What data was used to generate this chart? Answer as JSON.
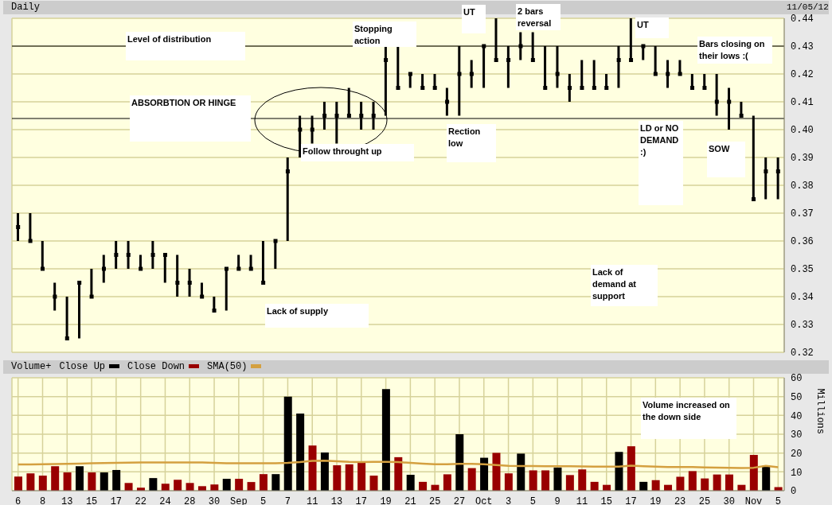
{
  "chart_data": [
    {
      "type": "bar",
      "title": "Daily",
      "series": [
        {
          "type": "bar",
          "color": "#000000",
          "base": [
            0.36,
            0.36,
            0.35,
            0.335,
            0.325,
            0.325,
            0.34,
            0.345,
            0.35,
            0.35,
            0.35,
            0.35,
            0.345,
            0.34,
            0.34,
            0.34,
            0.335,
            0.335,
            0.35,
            0.35,
            0.345,
            0.35,
            0.36,
            0.39,
            0.395,
            0.4,
            0.395,
            0.405,
            0.4,
            0.4,
            0.405,
            0.415,
            0.415,
            0.415,
            0.415,
            0.405,
            0.405,
            0.415,
            0.415,
            0.425,
            0.415,
            0.425,
            0.425,
            0.415,
            0.415,
            0.41,
            0.415,
            0.415,
            0.415,
            0.415,
            0.425,
            0.425,
            0.42,
            0.415,
            0.42,
            0.415,
            0.415,
            0.405,
            0.4,
            0.405,
            0.375,
            0.375,
            0.375
          ],
          "values": [
            0.01,
            0.01,
            0.01,
            0.01,
            0.015,
            0.02,
            0.01,
            0.01,
            0.01,
            0.01,
            0.005,
            0.01,
            0.01,
            0.015,
            0.01,
            0.005,
            0.005,
            0.015,
            0.005,
            0.005,
            0.015,
            0.01,
            0.03,
            0.015,
            0.01,
            0.01,
            0.015,
            0.01,
            0.01,
            0.01,
            0.025,
            0.015,
            0.005,
            0.005,
            0.005,
            0.01,
            0.025,
            0.01,
            0.015,
            0.015,
            0.015,
            0.01,
            0.01,
            0.015,
            0.015,
            0.01,
            0.01,
            0.01,
            0.005,
            0.015,
            0.015,
            0.005,
            0.01,
            0.01,
            0.005,
            0.005,
            0.005,
            0.015,
            0.015,
            0.005,
            0.03,
            0.015,
            0.015
          ]
        },
        {
          "type": "scatter",
          "color": "#000000",
          "values": [
            0.365,
            0.36,
            0.35,
            0.34,
            0.325,
            0.345,
            0.34,
            0.35,
            0.355,
            0.355,
            0.35,
            0.355,
            0.355,
            0.345,
            0.345,
            0.34,
            0.335,
            0.35,
            0.35,
            0.35,
            0.345,
            0.36,
            0.385,
            0.4,
            0.4,
            0.405,
            0.405,
            0.405,
            0.405,
            0.405,
            0.425,
            0.415,
            0.42,
            0.415,
            0.415,
            0.41,
            0.42,
            0.42,
            0.43,
            0.425,
            0.425,
            0.43,
            0.425,
            0.415,
            0.42,
            0.415,
            0.415,
            0.415,
            0.415,
            0.425,
            0.425,
            0.43,
            0.42,
            0.42,
            0.42,
            0.415,
            0.415,
            0.41,
            0.41,
            0.405,
            0.375,
            0.385,
            0.385
          ]
        }
      ],
      "ylim": [
        0.32,
        0.44
      ],
      "yticks": [
        0.32,
        0.33,
        0.34,
        0.35,
        0.36,
        0.37,
        0.38,
        0.39,
        {
          "value": 0.4,
          "label": "0.40"
        },
        0.41,
        0.42,
        0.43,
        0.44
      ],
      "grid": true,
      "tick_labels": "y",
      "marker": "square",
      "ref_lines": [
        {
          "axis": "y",
          "value": 0.43
        },
        {
          "axis": "y",
          "value": 0.404
        }
      ],
      "annotations": [
        "11/05/12",
        "Level of distribution",
        "ABSORBTION OR HINGE",
        {
          "text": "Stopping action",
          "y": 0.43
        },
        "UT",
        "2 bars reversal",
        "UT",
        "Bars closing on their lows :(",
        "Follow throught up",
        {
          "text": "Rection low",
          "y": 0.405
        },
        "LD or NO DEMAND :)",
        "SOW",
        "Lack of demand at support",
        "Lack of supply"
      ]
    },
    {
      "type": "bar",
      "title": "Volume+",
      "categories": [
        "6",
        null,
        "8",
        null,
        "13",
        null,
        "15",
        null,
        "17",
        null,
        "22",
        null,
        "24",
        null,
        "28",
        null,
        "30",
        null,
        "Sep",
        null,
        "5",
        null,
        "7",
        null,
        "11",
        null,
        "13",
        null,
        "17",
        null,
        "19",
        null,
        "21",
        null,
        "25",
        null,
        "27",
        null,
        "Oct",
        null,
        "3",
        null,
        "5",
        null,
        "9",
        null,
        "11",
        null,
        "15",
        null,
        "17",
        null,
        "19",
        null,
        "23",
        null,
        "25",
        null,
        "30",
        null,
        "Nov",
        null,
        "5"
      ],
      "stacked": true,
      "series": [
        {
          "name": "Close Up",
          "color": "#000000",
          "values": [
            null,
            null,
            null,
            null,
            null,
            13,
            null,
            9.7,
            11,
            null,
            null,
            6.7,
            null,
            null,
            null,
            null,
            null,
            6.3,
            null,
            null,
            null,
            8.8,
            50,
            41,
            null,
            20.3,
            null,
            null,
            null,
            null,
            54,
            null,
            8.4,
            null,
            null,
            null,
            30,
            null,
            17.5,
            null,
            null,
            19.7,
            null,
            null,
            12.3,
            null,
            null,
            null,
            null,
            20.6,
            null,
            4.7,
            null,
            null,
            null,
            null,
            null,
            null,
            null,
            null,
            null,
            13.2,
            null
          ]
        },
        {
          "name": "Close Down",
          "color": "#990000",
          "values": [
            7.5,
            9.2,
            8,
            13,
            9.7,
            null,
            9.7,
            null,
            null,
            4.1,
            1.6,
            null,
            3.7,
            5.8,
            4.1,
            2.4,
            3.3,
            null,
            6.3,
            4.6,
            8.8,
            null,
            null,
            null,
            24,
            null,
            13.5,
            14,
            15.2,
            8,
            null,
            17.8,
            null,
            4.7,
            3.1,
            8.7,
            null,
            12,
            null,
            20.1,
            9.2,
            null,
            10.8,
            10.8,
            null,
            8.3,
            11.3,
            4.7,
            3.1,
            null,
            23.6,
            null,
            5.6,
            3.1,
            7.4,
            10.4,
            6.5,
            8.6,
            8.6,
            3.1,
            19,
            null,
            1.9
          ]
        },
        {
          "name": "SMA(50)",
          "type": "line",
          "color": "#d4a040",
          "values": [
            13.9,
            13.9,
            14,
            14.2,
            14.3,
            14.4,
            14.6,
            14.7,
            14.8,
            14.9,
            15,
            15,
            15,
            15,
            15,
            15,
            14.8,
            14.6,
            14.6,
            14.6,
            14.6,
            14.6,
            14.8,
            15.2,
            15.8,
            16,
            15.6,
            15.3,
            15.2,
            15.3,
            15.3,
            15.2,
            14.8,
            14.4,
            14,
            14,
            14.3,
            14.3,
            14.1,
            13.6,
            13.2,
            13.1,
            13.1,
            13,
            13,
            13,
            12.9,
            12.8,
            12.8,
            12.8,
            13.3,
            13,
            12.8,
            12.6,
            12.6,
            12.6,
            12.4,
            12.3,
            12.1,
            12,
            12.2,
            13.2,
            12.5
          ]
        }
      ],
      "ylim": [
        0,
        60
      ],
      "yticks": [
        0,
        10,
        20,
        30,
        40,
        50,
        60
      ],
      "ylabel": "Millions",
      "grid": true,
      "legend": "top left",
      "annotations": [
        "Volume increased on the down side"
      ]
    }
  ]
}
